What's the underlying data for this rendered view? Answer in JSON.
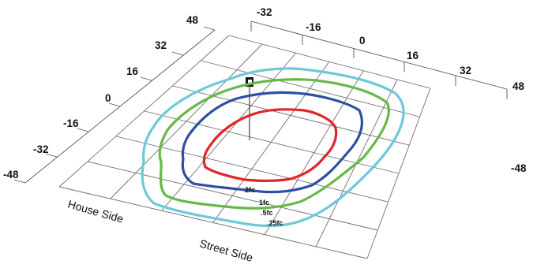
{
  "axes": {
    "left_ticks": [
      "48",
      "32",
      "16",
      "0",
      "-16",
      "-32",
      "-48"
    ],
    "top_ticks": [
      "-32",
      "-16",
      "0",
      "16",
      "32",
      "48"
    ],
    "right_extra_tick": "-48",
    "house_side_label": "House Side",
    "street_side_label": "Street Side"
  },
  "contours": [
    {
      "label": "2fc",
      "color": "#e0262b"
    },
    {
      "label": "1fc",
      "color": "#2f4fa3"
    },
    {
      "label": ".5fc",
      "color": "#66b84a"
    },
    {
      "label": ".25fc",
      "color": "#6cc9d9"
    }
  ],
  "fixture_icon": "light-fixture-icon"
}
